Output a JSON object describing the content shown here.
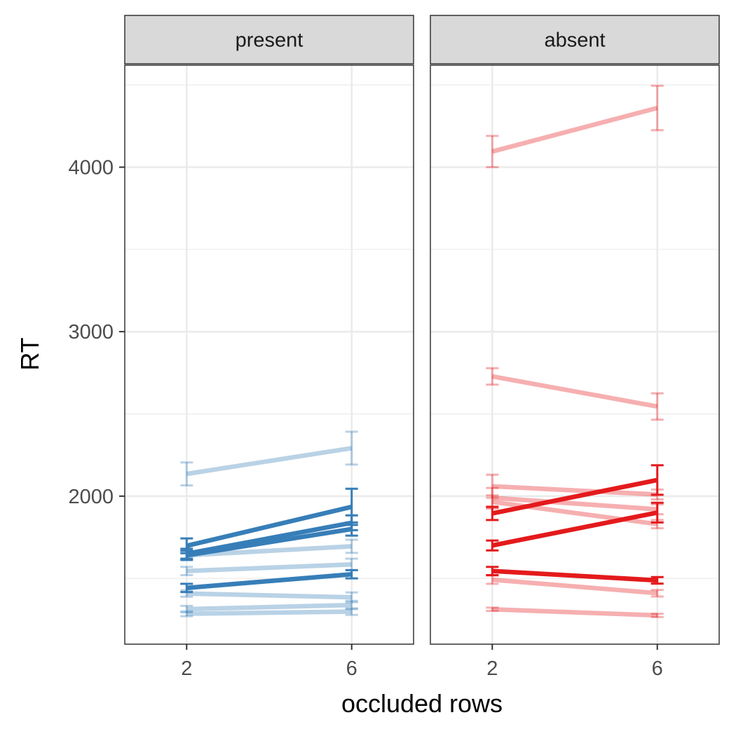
{
  "chart_data": {
    "type": "line",
    "xlabel": "occluded rows",
    "ylabel": "RT",
    "x": [
      2,
      6
    ],
    "xticks": [
      "2",
      "6"
    ],
    "xlim": [
      0.5,
      7.5
    ],
    "ylim": [
      1100,
      4620
    ],
    "yticks": [
      2000,
      3000,
      4000
    ],
    "grid": true,
    "legend": "none",
    "colors": {
      "present": "#377eb8",
      "absent": "#e41a1c"
    },
    "panels": [
      {
        "label": "present",
        "series": [
          {
            "highlight": false,
            "values": [
              2135,
              2292
            ],
            "errors": [
              70,
              100
            ]
          },
          {
            "highlight": true,
            "values": [
              1698,
              1935
            ],
            "errors": [
              45,
              110
            ]
          },
          {
            "highlight": true,
            "values": [
              1650,
              1838
            ],
            "errors": [
              30,
              45
            ]
          },
          {
            "highlight": true,
            "values": [
              1640,
              1800
            ],
            "errors": [
              28,
              40
            ]
          },
          {
            "highlight": false,
            "values": [
              1640,
              1695
            ],
            "errors": [
              28,
              40
            ]
          },
          {
            "highlight": false,
            "values": [
              1545,
              1585
            ],
            "errors": [
              25,
              35
            ]
          },
          {
            "highlight": true,
            "values": [
              1442,
              1525
            ],
            "errors": [
              25,
              25
            ]
          },
          {
            "highlight": false,
            "values": [
              1408,
              1385
            ],
            "errors": [
              20,
              30
            ]
          },
          {
            "highlight": false,
            "values": [
              1313,
              1338
            ],
            "errors": [
              20,
              25
            ]
          },
          {
            "highlight": false,
            "values": [
              1285,
              1298
            ],
            "errors": [
              15,
              20
            ]
          }
        ]
      },
      {
        "label": "absent",
        "series": [
          {
            "highlight": false,
            "values": [
              4095,
              4360
            ],
            "errors": [
              95,
              135
            ]
          },
          {
            "highlight": false,
            "values": [
              2728,
              2545
            ],
            "errors": [
              50,
              80
            ]
          },
          {
            "highlight": true,
            "values": [
              1895,
              2098
            ],
            "errors": [
              40,
              90
            ]
          },
          {
            "highlight": false,
            "values": [
              2060,
              2010
            ],
            "errors": [
              70,
              30
            ]
          },
          {
            "highlight": false,
            "values": [
              1990,
              1920
            ],
            "errors": [
              60,
              30
            ]
          },
          {
            "highlight": false,
            "values": [
              1965,
              1830
            ],
            "errors": [
              40,
              25
            ]
          },
          {
            "highlight": true,
            "values": [
              1700,
              1900
            ],
            "errors": [
              30,
              60
            ]
          },
          {
            "highlight": true,
            "values": [
              1545,
              1488
            ],
            "errors": [
              25,
              20
            ]
          },
          {
            "highlight": false,
            "values": [
              1492,
              1410
            ],
            "errors": [
              25,
              20
            ]
          },
          {
            "highlight": false,
            "values": [
              1312,
              1275
            ],
            "errors": [
              10,
              10
            ]
          }
        ]
      }
    ]
  }
}
